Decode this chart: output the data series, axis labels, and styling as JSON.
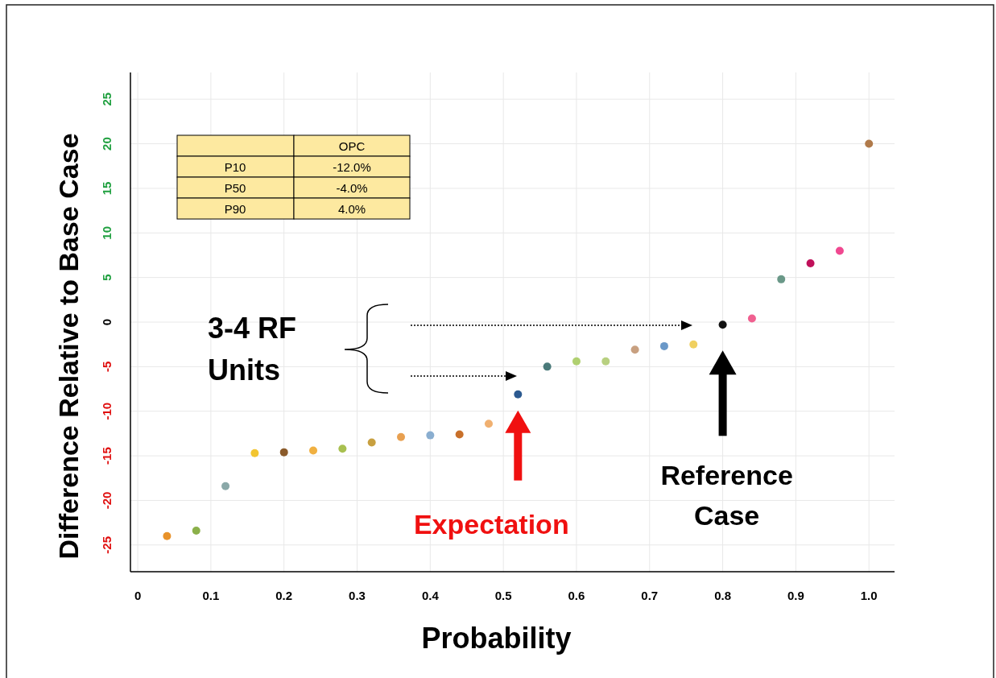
{
  "chart_data": {
    "type": "scatter",
    "xlabel": "Probability",
    "ylabel": "Difference Relative to Base Case",
    "x": [
      0.04,
      0.08,
      0.12,
      0.16,
      0.2,
      0.24,
      0.28,
      0.32,
      0.36,
      0.4,
      0.44,
      0.48,
      0.52,
      0.56,
      0.6,
      0.64,
      0.68,
      0.72,
      0.76,
      0.8,
      0.84,
      0.88,
      0.92,
      0.96,
      1.0
    ],
    "values": [
      -24.0,
      -23.4,
      -18.4,
      -14.7,
      -14.6,
      -14.4,
      -14.2,
      -13.5,
      -12.9,
      -12.7,
      -12.6,
      -11.4,
      -8.1,
      -5.0,
      -4.4,
      -4.4,
      -3.1,
      -2.7,
      -2.5,
      -0.3,
      0.4,
      4.8,
      6.6,
      8.0,
      20.0
    ],
    "colors": [
      "#e8922a",
      "#8bb04a",
      "#8aa8a8",
      "#f2c530",
      "#8a5a2a",
      "#f0b040",
      "#a8c050",
      "#c8a040",
      "#e8a050",
      "#8aaed0",
      "#c8702a",
      "#f0b070",
      "#2c5a90",
      "#4a7a7a",
      "#b0d070",
      "#b8d080",
      "#c8a080",
      "#6a98c8",
      "#f0d060",
      "#111111",
      "#f06090",
      "#6a9888",
      "#c0105a",
      "#f04890",
      "#b07a4a"
    ],
    "marker": "circle",
    "grid": true,
    "xlim": [
      -0.01,
      1.035
    ],
    "xticks": [
      0,
      0.1,
      0.2,
      0.3,
      0.4,
      0.5,
      0.6,
      0.7,
      0.8,
      0.9,
      {
        "value": 1,
        "label": "1.0"
      }
    ],
    "ylim": [
      -28,
      28
    ],
    "yticks": [
      -25,
      -20,
      -15,
      -10,
      -5,
      0,
      5,
      10,
      15,
      20,
      25
    ],
    "annotations": [
      "OPC",
      "P10",
      "-12.0%",
      "P50",
      "-4.0%",
      "P90",
      "4.0%",
      "3-4 RF Units",
      "Expectation",
      "Reference Case"
    ]
  }
}
